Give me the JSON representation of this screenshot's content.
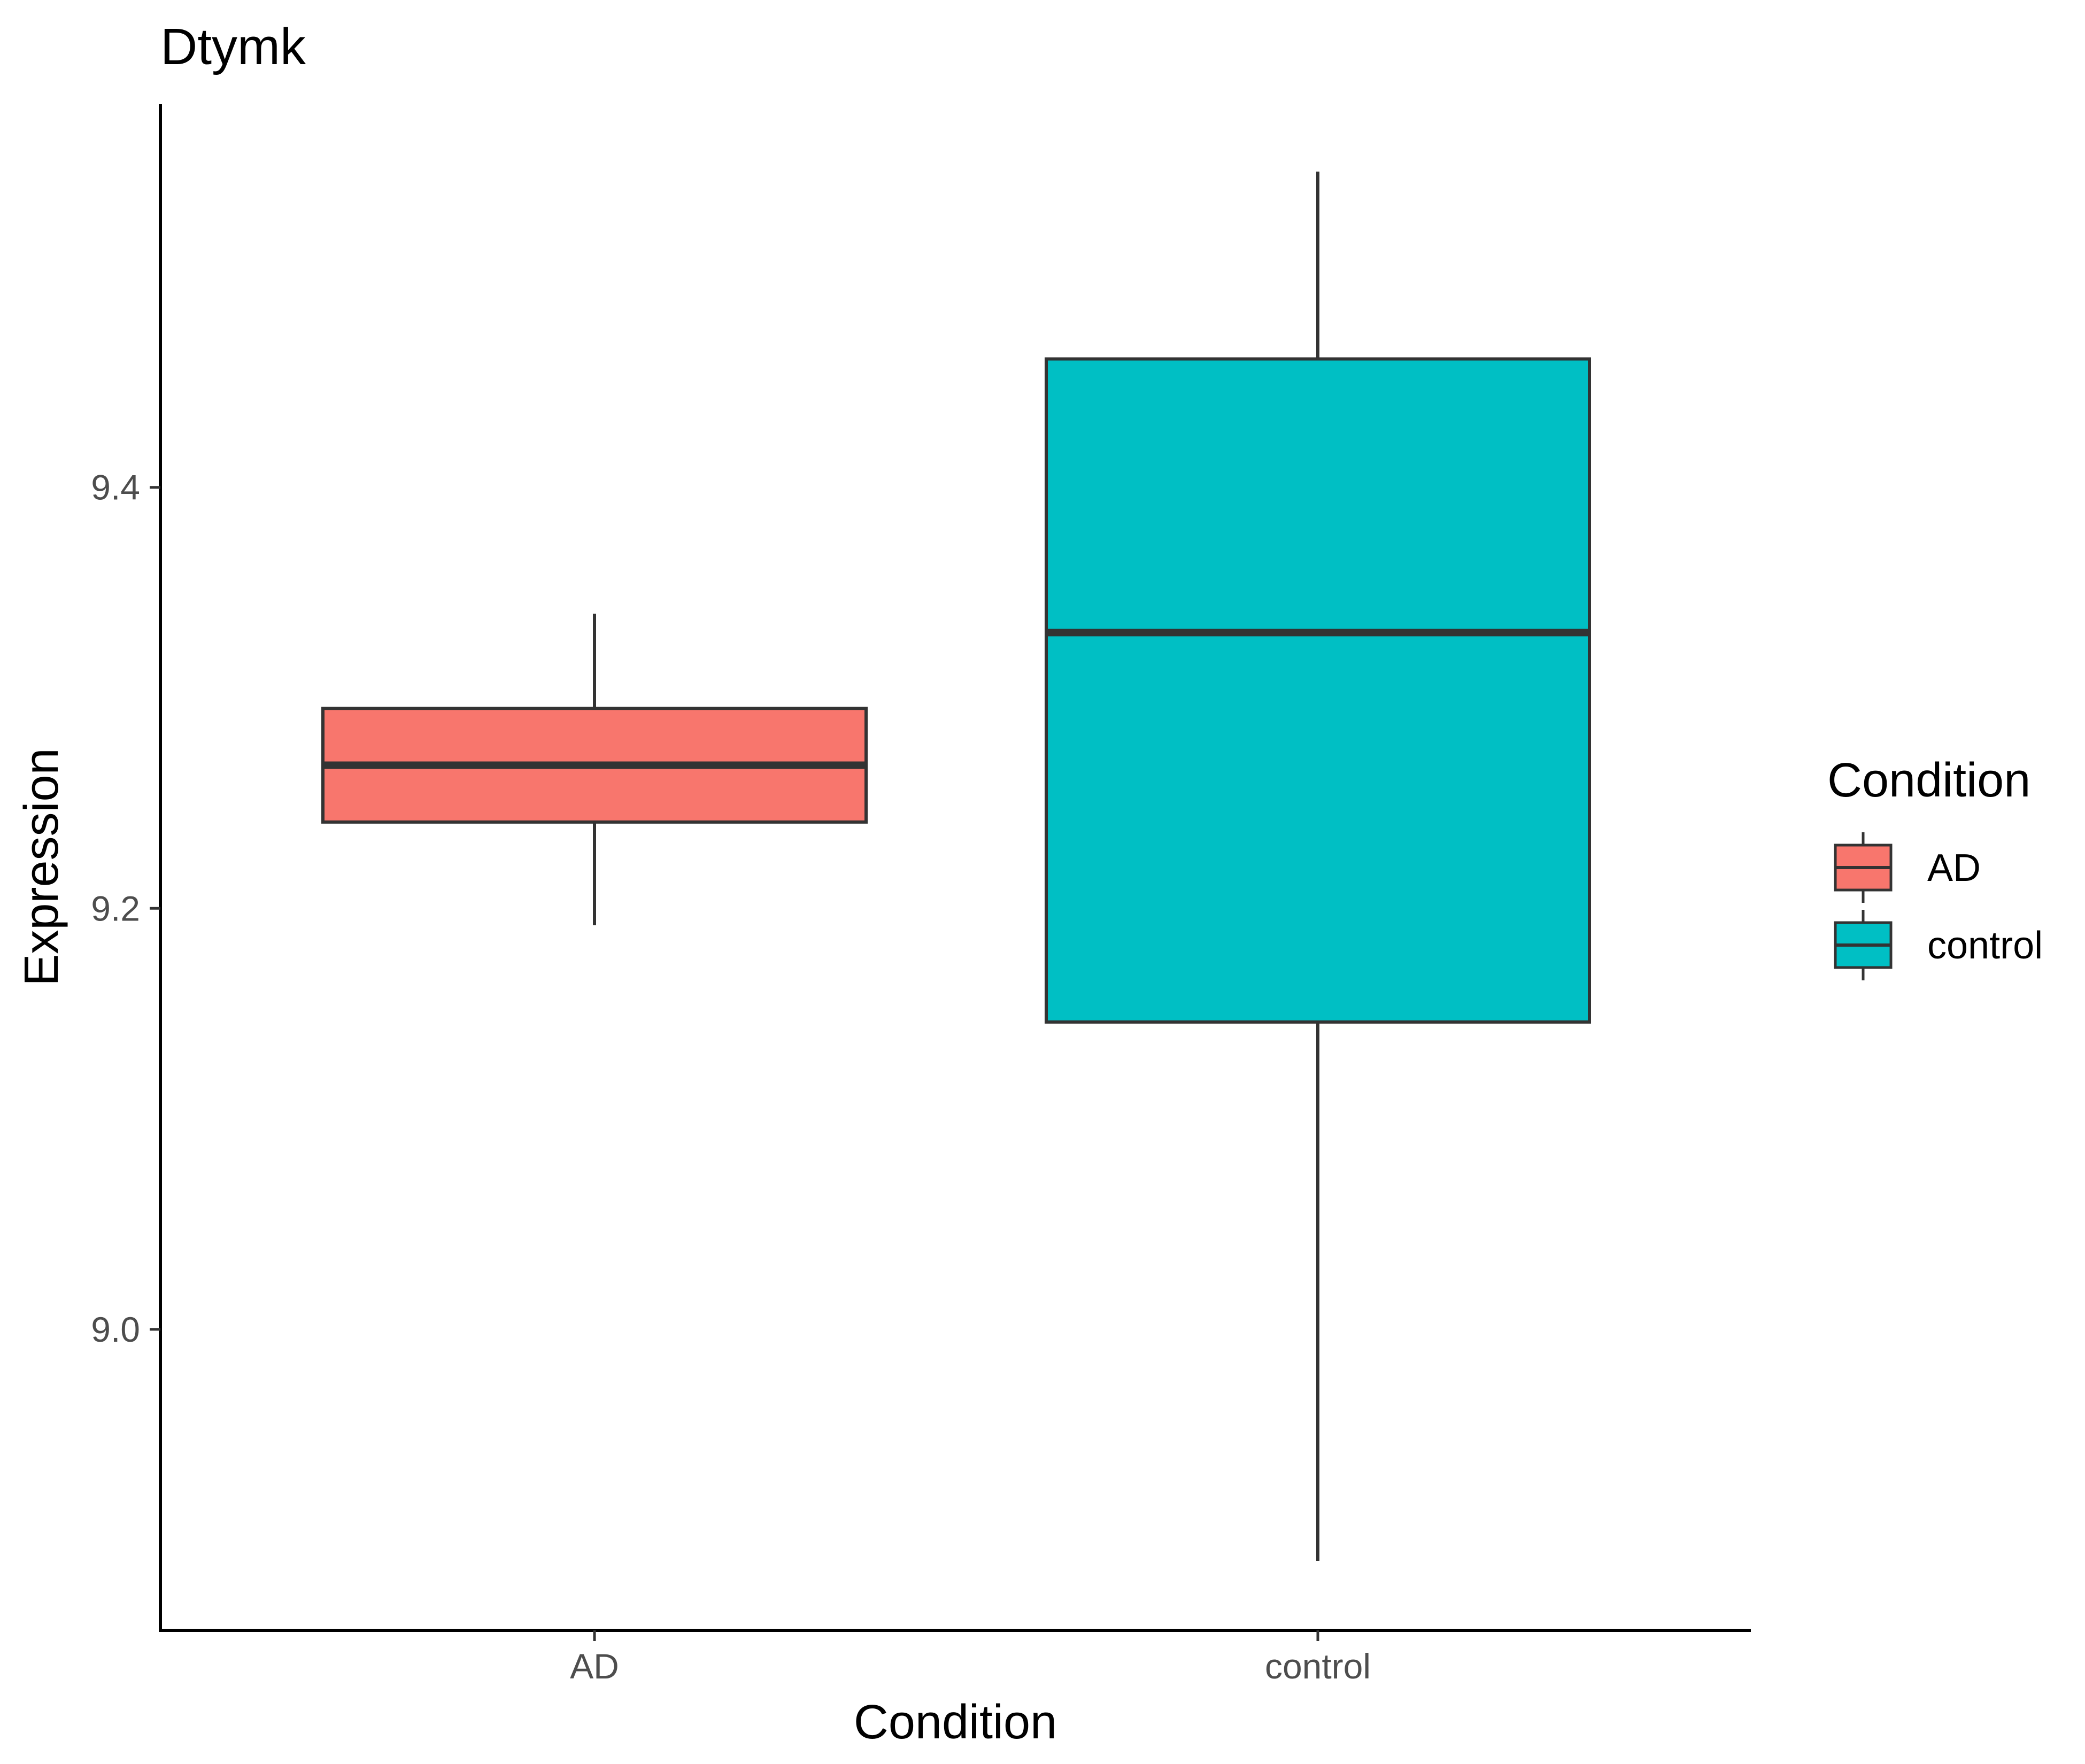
{
  "chart_data": {
    "type": "boxplot",
    "title": "Dtymk",
    "xlabel": "Condition",
    "ylabel": "Expression",
    "categories": [
      "AD",
      "control"
    ],
    "y_ticks": [
      9.0,
      9.2,
      9.4
    ],
    "y_tick_labels": [
      "9.0",
      "9.2",
      "9.4"
    ],
    "ylim": [
      8.857,
      9.582
    ],
    "boxes": [
      {
        "category": "AD",
        "whisker_low": 9.192,
        "q1": 9.241,
        "median": 9.268,
        "q3": 9.295,
        "whisker_high": 9.34,
        "color": "#F8766D"
      },
      {
        "category": "control",
        "whisker_low": 8.89,
        "q1": 9.146,
        "median": 9.331,
        "q3": 9.461,
        "whisker_high": 9.55,
        "color": "#00BFC4"
      }
    ],
    "grid": false,
    "legend": {
      "title": "Condition",
      "position": "right",
      "entries": [
        {
          "label": "AD",
          "color": "#F8766D"
        },
        {
          "label": "control",
          "color": "#00BFC4"
        }
      ]
    },
    "outline_color": "#333333",
    "axis_color": "#000000"
  }
}
